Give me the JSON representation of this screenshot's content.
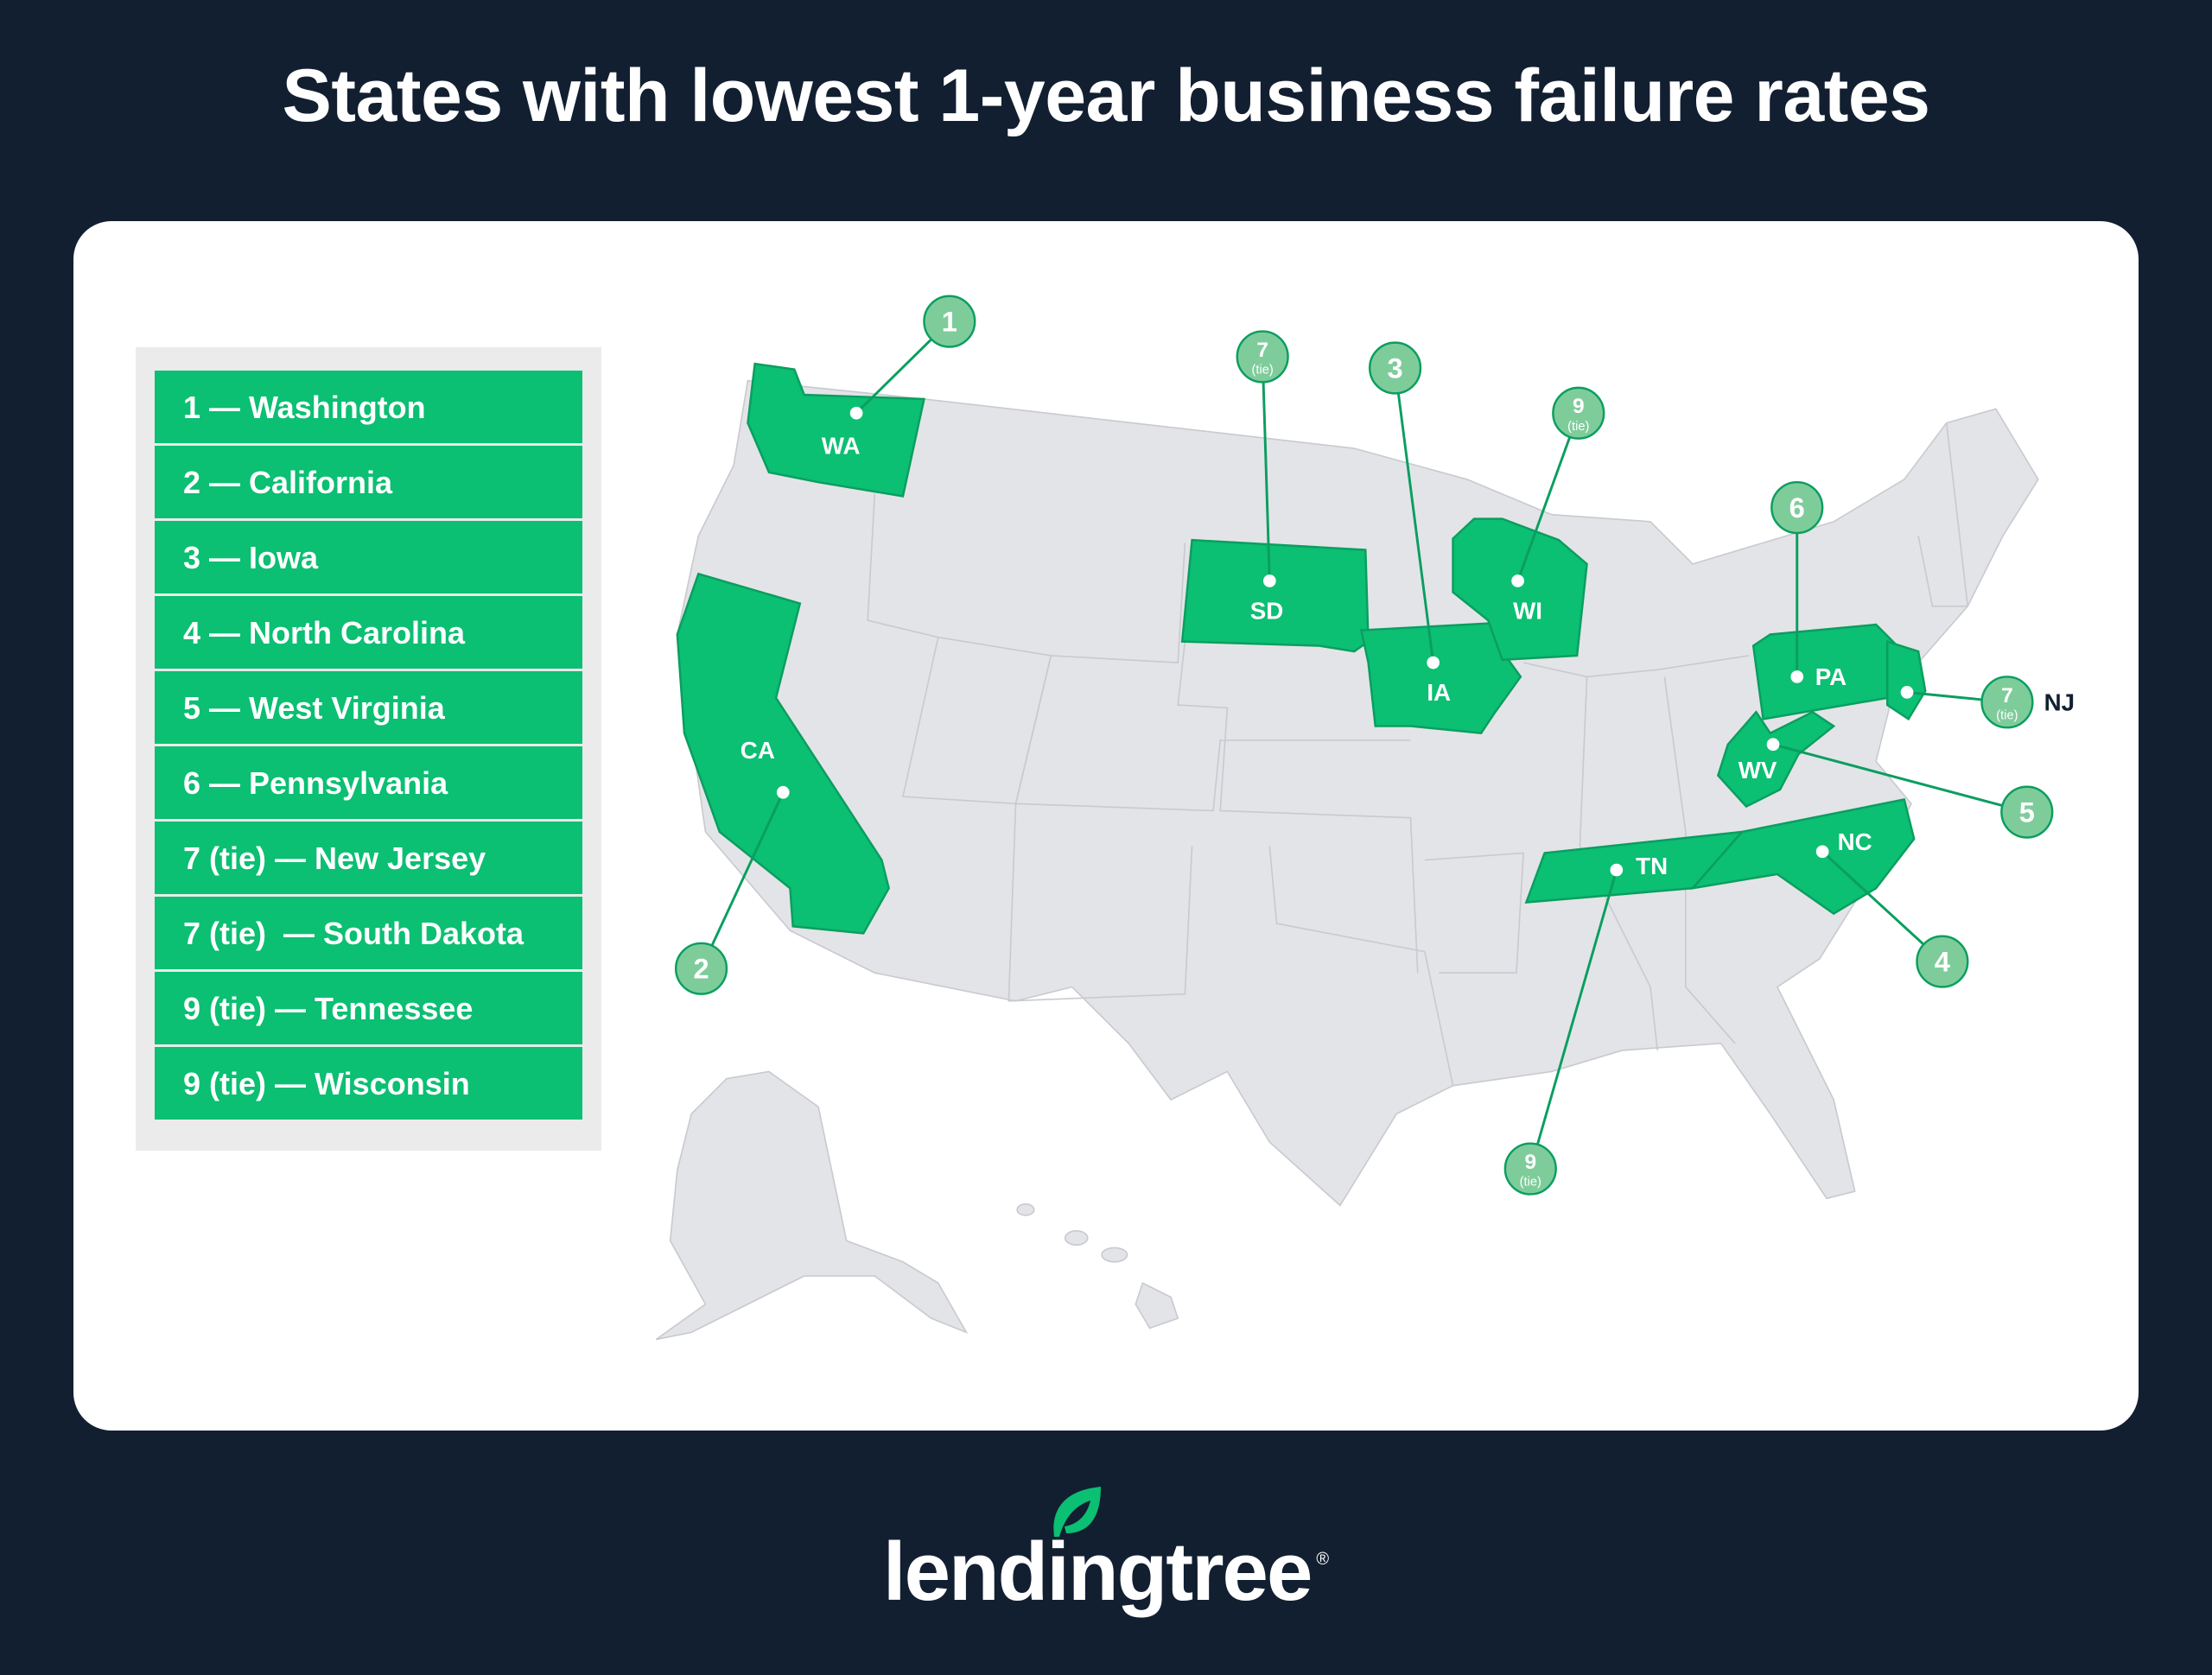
{
  "title": "States with lowest 1-year business failure rates",
  "colors": {
    "background": "#121f31",
    "highlight": "#0bbf73",
    "marker": "#7fcc9b",
    "land": "#e3e4e8"
  },
  "legend": [
    "1 — Washington",
    "2 — California",
    "3 — Iowa",
    "4 — North Carolina",
    "5 — West Virginia",
    "6 — Pennsylvania",
    "7 (tie) — New Jersey",
    "7 (tie)  — South Dakota",
    "9 (tie) — Tennessee",
    "9 (tie) — Wisconsin"
  ],
  "states": [
    {
      "abbr": "WA",
      "rank": "1",
      "tie": ""
    },
    {
      "abbr": "CA",
      "rank": "2",
      "tie": ""
    },
    {
      "abbr": "IA",
      "rank": "3",
      "tie": ""
    },
    {
      "abbr": "NC",
      "rank": "4",
      "tie": ""
    },
    {
      "abbr": "WV",
      "rank": "5",
      "tie": ""
    },
    {
      "abbr": "PA",
      "rank": "6",
      "tie": ""
    },
    {
      "abbr": "NJ",
      "rank": "7",
      "tie": "(tie)"
    },
    {
      "abbr": "SD",
      "rank": "7",
      "tie": "(tie)"
    },
    {
      "abbr": "TN",
      "rank": "9",
      "tie": "(tie)"
    },
    {
      "abbr": "WI",
      "rank": "9",
      "tie": "(tie)"
    }
  ],
  "logo": {
    "text": "lendingtree",
    "registered": "®"
  }
}
